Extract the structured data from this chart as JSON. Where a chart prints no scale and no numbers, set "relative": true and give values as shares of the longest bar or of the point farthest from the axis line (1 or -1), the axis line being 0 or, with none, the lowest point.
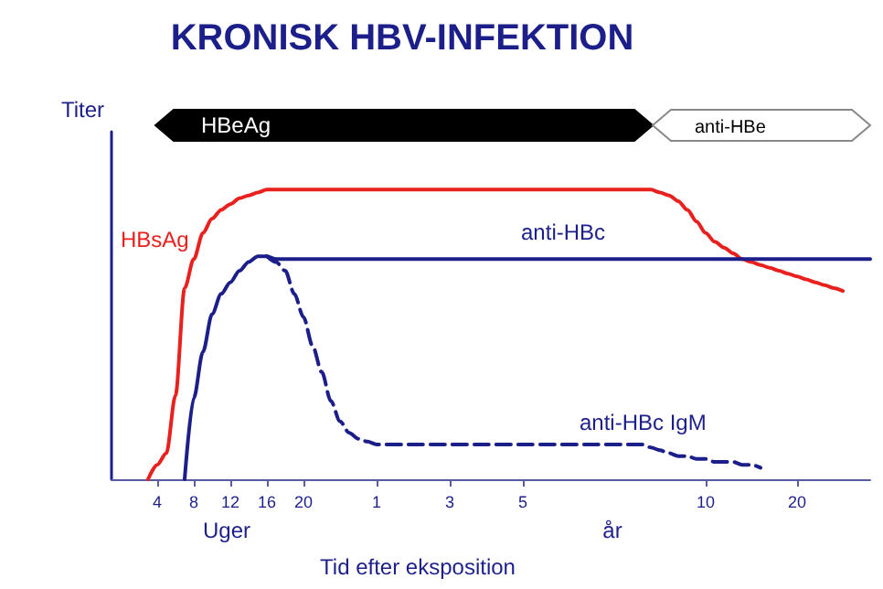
{
  "chart_data": {
    "type": "line",
    "title": "KRONISK HBV-INFEKTION",
    "xlabel": "Tid efter eksposition",
    "ylabel": "Titer",
    "relative": true,
    "marker": "none",
    "grid": false,
    "legend": false,
    "categories": [
      null,
      null,
      null,
      null,
      null,
      "4",
      null,
      null,
      null,
      "8",
      null,
      null,
      null,
      "12",
      null,
      null,
      null,
      "16",
      null,
      null,
      null,
      "20",
      null,
      null,
      null,
      null,
      null,
      null,
      null,
      "1",
      null,
      null,
      null,
      null,
      null,
      null,
      null,
      "3",
      null,
      null,
      null,
      null,
      null,
      null,
      null,
      "5",
      null,
      null,
      null,
      null,
      null,
      null,
      null,
      null,
      null,
      null,
      null,
      null,
      null,
      null,
      null,
      null,
      null,
      null,
      null,
      "10",
      null,
      null,
      null,
      null,
      null,
      null,
      null,
      null,
      null,
      "20",
      null,
      null,
      null,
      null,
      null,
      null,
      null,
      null
    ],
    "series": [
      {
        "name": "HBsAg",
        "color": "#e8201e",
        "line_style": "solid",
        "values": [
          null,
          null,
          null,
          null,
          0,
          0.05,
          0.09,
          0.29,
          0.66,
          0.76,
          0.85,
          0.9,
          0.93,
          0.95,
          0.97,
          0.98,
          0.99,
          1,
          1,
          1,
          1,
          1,
          1,
          1,
          1,
          1,
          1,
          1,
          1,
          1,
          1,
          1,
          1,
          1,
          1,
          1,
          1,
          1,
          1,
          1,
          1,
          1,
          1,
          1,
          1,
          1,
          1,
          1,
          1,
          1,
          1,
          1,
          1,
          1,
          1,
          1,
          1,
          1,
          1,
          1,
          0.99,
          0.98,
          0.96,
          0.93,
          0.89,
          0.85,
          0.82,
          0.8,
          0.78,
          0.76,
          0.75,
          0.74,
          0.73,
          0.72,
          0.71,
          0.7,
          0.69,
          0.68,
          0.67,
          0.66,
          0.65,
          null,
          null,
          null
        ]
      },
      {
        "name": "anti-HBc",
        "color": "#1c1f8a",
        "line_style": "solid",
        "values": [
          null,
          null,
          null,
          null,
          null,
          null,
          null,
          null,
          0,
          0.28,
          0.44,
          0.57,
          0.64,
          0.68,
          0.72,
          0.75,
          0.77,
          0.77,
          0.76,
          0.76,
          0.76,
          0.76,
          0.76,
          0.76,
          0.76,
          0.76,
          0.76,
          0.76,
          0.76,
          0.76,
          0.76,
          0.76,
          0.76,
          0.76,
          0.76,
          0.76,
          0.76,
          0.76,
          0.76,
          0.76,
          0.76,
          0.76,
          0.76,
          0.76,
          0.76,
          0.76,
          0.76,
          0.76,
          0.76,
          0.76,
          0.76,
          0.76,
          0.76,
          0.76,
          0.76,
          0.76,
          0.76,
          0.76,
          0.76,
          0.76,
          0.76,
          0.76,
          0.76,
          0.76,
          0.76,
          0.76,
          0.76,
          0.76,
          0.76,
          0.76,
          0.76,
          0.76,
          0.76,
          0.76,
          0.76,
          0.76,
          0.76,
          0.76,
          0.76,
          0.76,
          0.76,
          0.76,
          0.76,
          0.76
        ]
      },
      {
        "name": "anti-HBc IgM",
        "color": "#1c1f8a",
        "line_style": "dashed",
        "values": [
          null,
          null,
          null,
          null,
          null,
          null,
          null,
          null,
          null,
          null,
          null,
          null,
          null,
          null,
          null,
          null,
          null,
          0.77,
          0.75,
          0.72,
          0.64,
          0.56,
          0.46,
          0.37,
          0.27,
          0.2,
          0.16,
          0.14,
          0.13,
          0.12,
          0.12,
          0.12,
          0.12,
          0.12,
          0.12,
          0.12,
          0.12,
          0.12,
          0.12,
          0.12,
          0.12,
          0.12,
          0.12,
          0.12,
          0.12,
          0.12,
          0.12,
          0.12,
          0.12,
          0.12,
          0.12,
          0.12,
          0.12,
          0.12,
          0.12,
          0.12,
          0.12,
          0.12,
          0.12,
          0.11,
          0.1,
          0.09,
          0.08,
          0.08,
          0.07,
          0.07,
          0.06,
          0.06,
          0.06,
          0.05,
          0.05,
          0.04,
          null,
          null,
          null,
          null,
          null,
          null,
          null,
          null,
          null,
          null,
          null,
          null
        ]
      }
    ],
    "annotations": [
      "HBeAg",
      "anti-HBe",
      "Uger",
      "år"
    ]
  }
}
